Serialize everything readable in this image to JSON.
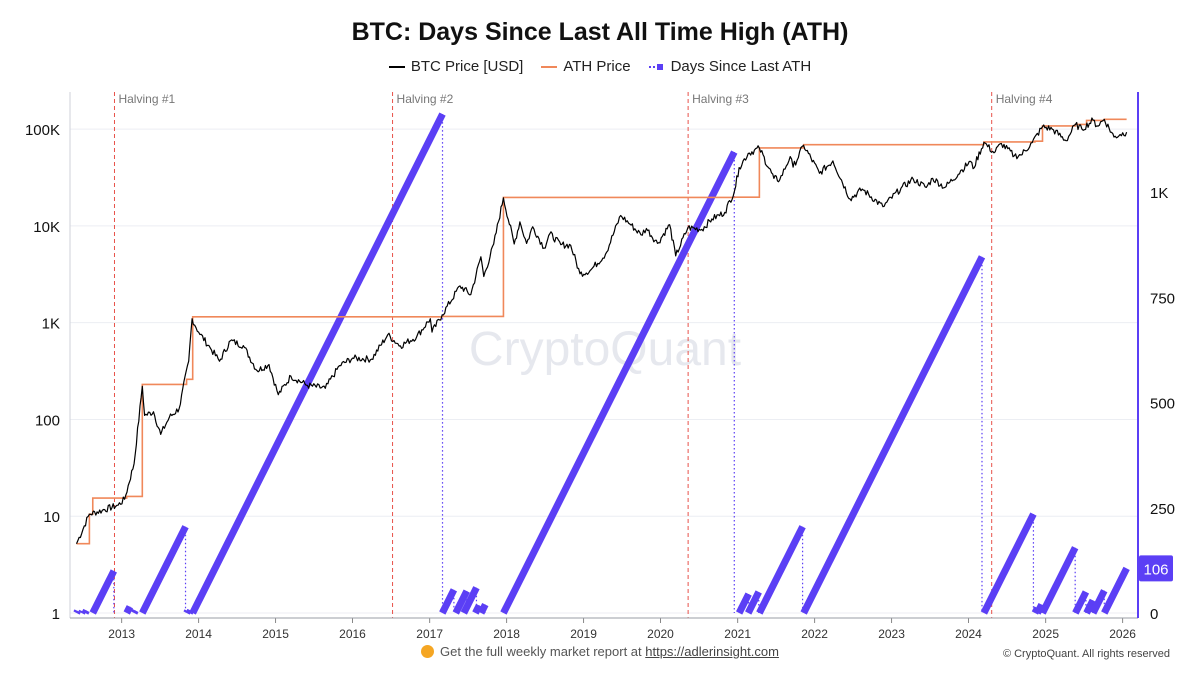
{
  "chart_data": {
    "type": "line",
    "title": "BTC: Days Since Last All Time High (ATH)",
    "legend": [
      {
        "label": "BTC Price [USD]",
        "color": "#000000"
      },
      {
        "label": "ATH Price",
        "color": "#f0885a"
      },
      {
        "label": "Days Since Last ATH",
        "color": "#5b3ff5"
      }
    ],
    "legend_position": "top-center",
    "x_axis": {
      "range": [
        "2012-05-01",
        "2026-03-15"
      ],
      "ticks": [
        "2013",
        "2014",
        "2015",
        "2016",
        "2017",
        "2018",
        "2019",
        "2020",
        "2021",
        "2022",
        "2023",
        "2024",
        "2025",
        "2026"
      ]
    },
    "y_left": {
      "scale": "log",
      "range": [
        1,
        200000
      ],
      "ticks": [
        1,
        10,
        100,
        1000,
        10000,
        100000
      ],
      "tick_labels": [
        "1",
        "10",
        "100",
        "1K",
        "10K",
        "100K"
      ]
    },
    "y_right": {
      "scale": "linear",
      "range": [
        0,
        1230
      ],
      "ticks": [
        0,
        250,
        500,
        750,
        1000
      ],
      "tick_labels": [
        "0",
        "250",
        "500",
        "750",
        "1K"
      ],
      "current_value_label": "106"
    },
    "grid": true,
    "watermark": "CryptoQuant",
    "halvings": [
      {
        "label": "Halving #1",
        "date": "2012-11-28"
      },
      {
        "label": "Halving #2",
        "date": "2016-07-09"
      },
      {
        "label": "Halving #3",
        "date": "2020-05-11"
      },
      {
        "label": "Halving #4",
        "date": "2024-04-20"
      }
    ],
    "price_series": {
      "name": "BTC Price [USD]",
      "points": [
        [
          "2012-06-01",
          5.2
        ],
        [
          "2012-08-01",
          10.5
        ],
        [
          "2012-10-01",
          11.5
        ],
        [
          "2012-12-15",
          13
        ],
        [
          "2013-01-15",
          15
        ],
        [
          "2013-03-01",
          35
        ],
        [
          "2013-04-09",
          220
        ],
        [
          "2013-04-20",
          110
        ],
        [
          "2013-06-01",
          120
        ],
        [
          "2013-07-05",
          70
        ],
        [
          "2013-08-15",
          105
        ],
        [
          "2013-10-01",
          130
        ],
        [
          "2013-11-15",
          400
        ],
        [
          "2013-12-01",
          1100
        ],
        [
          "2014-01-01",
          800
        ],
        [
          "2014-02-25",
          550
        ],
        [
          "2014-04-10",
          400
        ],
        [
          "2014-06-01",
          650
        ],
        [
          "2014-08-01",
          580
        ],
        [
          "2014-10-05",
          320
        ],
        [
          "2014-12-01",
          370
        ],
        [
          "2015-01-14",
          180
        ],
        [
          "2015-03-15",
          280
        ],
        [
          "2015-06-01",
          225
        ],
        [
          "2015-08-25",
          210
        ],
        [
          "2015-11-01",
          360
        ],
        [
          "2016-01-01",
          430
        ],
        [
          "2016-04-01",
          420
        ],
        [
          "2016-06-16",
          750
        ],
        [
          "2016-08-15",
          575
        ],
        [
          "2016-11-01",
          720
        ],
        [
          "2017-01-04",
          1100
        ],
        [
          "2017-01-12",
          800
        ],
        [
          "2017-03-01",
          1200
        ],
        [
          "2017-05-25",
          2400
        ],
        [
          "2017-07-15",
          1950
        ],
        [
          "2017-09-01",
          4800
        ],
        [
          "2017-09-15",
          3000
        ],
        [
          "2017-11-01",
          6500
        ],
        [
          "2017-12-17",
          19500
        ],
        [
          "2018-02-06",
          6500
        ],
        [
          "2018-03-05",
          11000
        ],
        [
          "2018-04-06",
          6600
        ],
        [
          "2018-05-05",
          9800
        ],
        [
          "2018-06-28",
          5900
        ],
        [
          "2018-07-25",
          8300
        ],
        [
          "2018-09-15",
          6400
        ],
        [
          "2018-11-01",
          6300
        ],
        [
          "2018-12-15",
          3200
        ],
        [
          "2019-02-01",
          3450
        ],
        [
          "2019-04-15",
          5100
        ],
        [
          "2019-06-26",
          12800
        ],
        [
          "2019-08-15",
          10200
        ],
        [
          "2019-09-30",
          8100
        ],
        [
          "2019-10-26",
          9400
        ],
        [
          "2019-12-18",
          6600
        ],
        [
          "2020-02-13",
          10300
        ],
        [
          "2020-03-13",
          4900
        ],
        [
          "2020-05-10",
          9600
        ],
        [
          "2020-07-15",
          9200
        ],
        [
          "2020-09-01",
          11800
        ],
        [
          "2020-11-01",
          13800
        ],
        [
          "2020-12-17",
          23000
        ],
        [
          "2021-01-08",
          40000
        ],
        [
          "2021-02-20",
          56000
        ],
        [
          "2021-04-14",
          63500
        ],
        [
          "2021-06-22",
          31000
        ],
        [
          "2021-07-20",
          30000
        ],
        [
          "2021-09-07",
          52000
        ],
        [
          "2021-09-21",
          40500
        ],
        [
          "2021-11-10",
          68000
        ],
        [
          "2022-01-24",
          35000
        ],
        [
          "2022-03-29",
          47000
        ],
        [
          "2022-06-18",
          19000
        ],
        [
          "2022-08-15",
          24000
        ],
        [
          "2022-11-21",
          15800
        ],
        [
          "2023-02-15",
          24500
        ],
        [
          "2023-04-14",
          30400
        ],
        [
          "2023-06-15",
          25000
        ],
        [
          "2023-07-15",
          31000
        ],
        [
          "2023-09-11",
          25000
        ],
        [
          "2023-12-01",
          38000
        ],
        [
          "2024-01-10",
          46500
        ],
        [
          "2024-01-23",
          39000
        ],
        [
          "2024-03-14",
          73000
        ],
        [
          "2024-05-01",
          57000
        ],
        [
          "2024-06-05",
          71000
        ],
        [
          "2024-08-05",
          53000
        ],
        [
          "2024-09-06",
          54000
        ],
        [
          "2024-10-29",
          72500
        ],
        [
          "2024-12-17",
          106000
        ],
        [
          "2025-02-01",
          100000
        ],
        [
          "2025-04-08",
          76000
        ],
        [
          "2025-05-22",
          111500
        ],
        [
          "2025-06-22",
          100000
        ],
        [
          "2025-08-14",
          124000
        ],
        [
          "2025-09-01",
          108000
        ],
        [
          "2025-10-06",
          126000
        ],
        [
          "2025-11-21",
          83000
        ],
        [
          "2025-12-20",
          88000
        ],
        [
          "2026-01-20",
          93000
        ]
      ]
    },
    "ath_series": {
      "name": "ATH Price",
      "steps": [
        [
          "2012-06-01",
          5.2
        ],
        [
          "2012-08-01",
          10.5
        ],
        [
          "2012-08-17",
          15.4
        ],
        [
          "2013-01-25",
          16
        ],
        [
          "2013-04-09",
          230
        ],
        [
          "2013-11-05",
          260
        ],
        [
          "2013-12-04",
          1150
        ],
        [
          "2017-03-02",
          1160
        ],
        [
          "2017-12-17",
          19700
        ],
        [
          "2020-12-17",
          19800
        ],
        [
          "2021-04-14",
          64000
        ],
        [
          "2021-11-10",
          69000
        ],
        [
          "2024-03-05",
          69200
        ],
        [
          "2024-03-14",
          73800
        ],
        [
          "2024-11-11",
          75000
        ],
        [
          "2024-12-17",
          108000
        ],
        [
          "2025-05-22",
          111900
        ],
        [
          "2025-07-14",
          123000
        ],
        [
          "2025-10-06",
          126200
        ],
        [
          "2026-01-20",
          126200
        ]
      ]
    },
    "days_since_ath_series": {
      "name": "Days Since Last ATH",
      "axis": "right",
      "segments": [
        {
          "start": "2012-06-01",
          "days": 5
        },
        {
          "start": "2012-06-25",
          "days": 4
        },
        {
          "start": "2012-07-12",
          "days": 6
        },
        {
          "start": "2012-08-17",
          "days": 100
        },
        {
          "start": "2013-01-25",
          "days": 15
        },
        {
          "start": "2013-03-01",
          "days": 6
        },
        {
          "start": "2013-04-09",
          "days": 205
        },
        {
          "start": "2013-11-05",
          "days": 5
        },
        {
          "start": "2013-11-18",
          "days": 6
        },
        {
          "start": "2013-12-04",
          "days": 1185
        },
        {
          "start": "2017-03-02",
          "days": 55
        },
        {
          "start": "2017-05-05",
          "days": 52
        },
        {
          "start": "2017-06-12",
          "days": 60
        },
        {
          "start": "2017-08-06",
          "days": 18
        },
        {
          "start": "2017-09-02",
          "days": 20
        },
        {
          "start": "2017-12-17",
          "days": 1095
        },
        {
          "start": "2021-01-08",
          "days": 45
        },
        {
          "start": "2021-02-20",
          "days": 50
        },
        {
          "start": "2021-04-14",
          "days": 205
        },
        {
          "start": "2021-11-10",
          "days": 846
        },
        {
          "start": "2024-03-14",
          "days": 235
        },
        {
          "start": "2024-11-11",
          "days": 12
        },
        {
          "start": "2024-11-23",
          "days": 20
        },
        {
          "start": "2024-12-17",
          "days": 155
        },
        {
          "start": "2025-05-22",
          "days": 50
        },
        {
          "start": "2025-07-14",
          "days": 30
        },
        {
          "start": "2025-08-14",
          "days": 53
        },
        {
          "start": "2025-10-06",
          "days": 106
        }
      ]
    },
    "colors": {
      "price": "#000000",
      "ath": "#f0885a",
      "days": "#5b3ff5",
      "halving": "#e8524a",
      "right_axis": "#5b3ff5"
    }
  },
  "footer": {
    "cta_text": "Get the full weekly market report at ",
    "cta_link": "https://adlerinsight.com",
    "copyright": "© CryptoQuant. All rights reserved"
  }
}
